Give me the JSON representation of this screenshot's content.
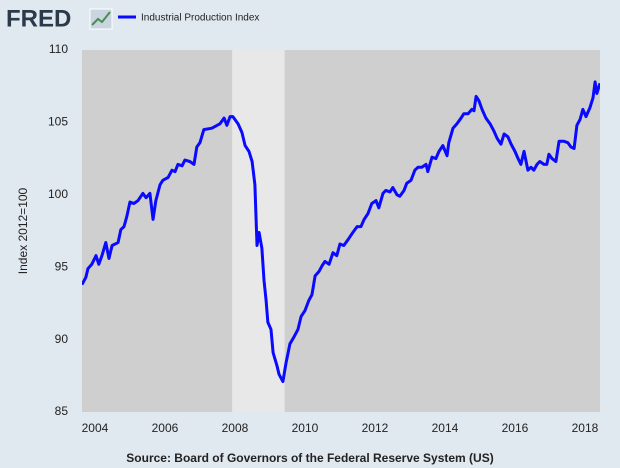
{
  "brand": "FRED",
  "source": "Source: Board of Governors of the Federal Reserve System (US)",
  "chart_data": {
    "type": "line",
    "ylabel": "Index 2012=100",
    "xlim": [
      2003.63,
      2018.43
    ],
    "xticks": [
      2004,
      2006,
      2008,
      2010,
      2012,
      2014,
      2016,
      2018
    ],
    "ylim": [
      85,
      110
    ],
    "yticks": [
      85,
      90,
      95,
      100,
      105,
      110
    ],
    "grid": false,
    "shading": [
      {
        "x0": 2007.92,
        "x1": 2009.42
      }
    ],
    "x": [
      2003.63,
      2003.74,
      2003.8,
      2003.91,
      2004.03,
      2004.11,
      2004.2,
      2004.31,
      2004.4,
      2004.49,
      2004.66,
      2004.74,
      2004.83,
      2004.91,
      2005.0,
      2005.11,
      2005.23,
      2005.37,
      2005.46,
      2005.57,
      2005.66,
      2005.74,
      2005.86,
      2005.94,
      2006.09,
      2006.2,
      2006.29,
      2006.37,
      2006.49,
      2006.57,
      2006.71,
      2006.83,
      2006.91,
      2007.0,
      2007.11,
      2007.34,
      2007.57,
      2007.69,
      2007.77,
      2007.86,
      2007.94,
      2008.09,
      2008.2,
      2008.29,
      2008.4,
      2008.49,
      2008.57,
      2008.63,
      2008.69,
      2008.77,
      2008.83,
      2008.89,
      2008.94,
      2009.03,
      2009.09,
      2009.2,
      2009.26,
      2009.37,
      2009.46,
      2009.57,
      2009.69,
      2009.8,
      2009.89,
      2010.0,
      2010.11,
      2010.2,
      2010.29,
      2010.4,
      2010.49,
      2010.57,
      2010.69,
      2010.8,
      2010.91,
      2011.0,
      2011.11,
      2011.23,
      2011.34,
      2011.49,
      2011.6,
      2011.69,
      2011.8,
      2011.91,
      2012.03,
      2012.11,
      2012.23,
      2012.31,
      2012.43,
      2012.51,
      2012.63,
      2012.71,
      2012.83,
      2012.91,
      2013.03,
      2013.14,
      2013.23,
      2013.34,
      2013.46,
      2013.51,
      2013.63,
      2013.74,
      2013.83,
      2013.94,
      2014.06,
      2014.11,
      2014.23,
      2014.34,
      2014.46,
      2014.54,
      2014.66,
      2014.77,
      2014.83,
      2014.89,
      2014.97,
      2015.06,
      2015.17,
      2015.29,
      2015.4,
      2015.49,
      2015.6,
      2015.69,
      2015.8,
      2015.89,
      2016.0,
      2016.09,
      2016.17,
      2016.26,
      2016.31,
      2016.37,
      2016.46,
      2016.54,
      2016.63,
      2016.71,
      2016.83,
      2016.91,
      2016.97,
      2017.06,
      2017.17,
      2017.26,
      2017.4,
      2017.51,
      2017.6,
      2017.69,
      2017.77,
      2017.86,
      2017.94,
      2018.03,
      2018.14,
      2018.23,
      2018.29,
      2018.34,
      2018.43
    ],
    "series": [
      {
        "name": "Industrial Production Index",
        "color": "#0a0aff",
        "values": [
          93.8,
          94.3,
          94.9,
          95.2,
          95.8,
          95.2,
          95.8,
          96.7,
          95.6,
          96.5,
          96.7,
          97.6,
          97.8,
          98.5,
          99.5,
          99.4,
          99.6,
          100.1,
          99.8,
          100.1,
          98.3,
          99.6,
          100.7,
          101.0,
          101.2,
          101.7,
          101.6,
          102.1,
          102.0,
          102.4,
          102.3,
          102.1,
          103.3,
          103.6,
          104.5,
          104.6,
          104.9,
          105.3,
          104.8,
          105.4,
          105.4,
          104.9,
          104.3,
          103.4,
          103.0,
          102.3,
          100.7,
          96.5,
          97.4,
          96.3,
          94.1,
          92.7,
          91.2,
          90.7,
          89.1,
          88.2,
          87.6,
          87.1,
          88.4,
          89.7,
          90.2,
          90.7,
          91.6,
          92.0,
          92.7,
          93.1,
          94.4,
          94.7,
          95.1,
          95.4,
          95.2,
          96.0,
          95.8,
          96.6,
          96.5,
          96.9,
          97.3,
          97.8,
          97.8,
          98.3,
          98.7,
          99.4,
          99.6,
          99.1,
          100.1,
          100.3,
          100.2,
          100.5,
          100.0,
          99.9,
          100.3,
          100.8,
          101.0,
          101.7,
          101.9,
          101.9,
          102.1,
          101.6,
          102.6,
          102.5,
          103.0,
          103.4,
          102.7,
          103.6,
          104.6,
          104.9,
          105.3,
          105.6,
          105.6,
          105.9,
          105.8,
          106.8,
          106.5,
          105.9,
          105.3,
          104.9,
          104.4,
          103.9,
          103.5,
          104.2,
          104.0,
          103.5,
          103.0,
          102.5,
          102.1,
          103.0,
          102.4,
          101.7,
          101.9,
          101.7,
          102.1,
          102.3,
          102.1,
          102.1,
          102.8,
          102.5,
          102.3,
          103.7,
          103.7,
          103.6,
          103.3,
          103.2,
          104.8,
          105.2,
          105.9,
          105.4,
          106.0,
          106.7,
          107.8,
          107.0,
          107.7
        ]
      }
    ]
  }
}
